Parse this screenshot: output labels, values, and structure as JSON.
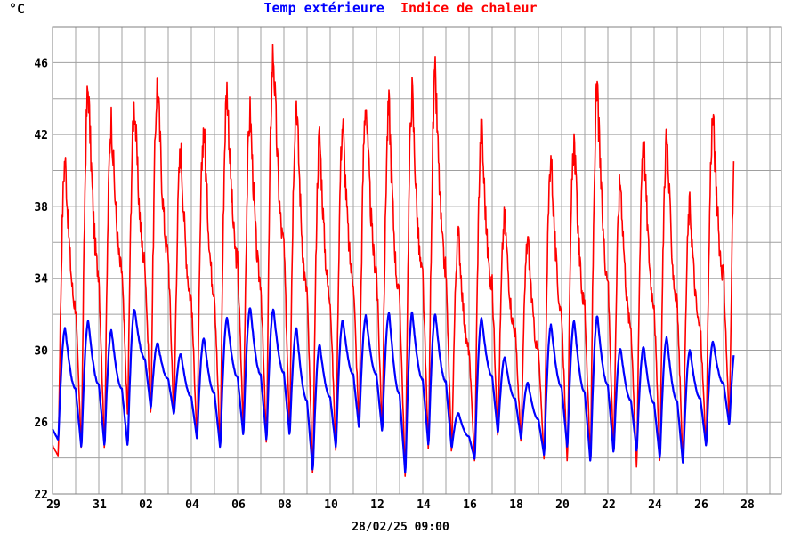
{
  "chart_data": {
    "type": "line",
    "unit": "°C",
    "title_series_1": "Temp extérieure",
    "title_series_2": "Indice de chaleur",
    "footer": "28/02/25 09:00",
    "grid": true,
    "ylim": [
      22,
      48
    ],
    "yticks": [
      "22",
      "26",
      "30",
      "34",
      "38",
      "42",
      "46"
    ],
    "xticks": [
      "29",
      "31",
      "02",
      "04",
      "06",
      "08",
      "10",
      "12",
      "14",
      "16",
      "18",
      "20",
      "22",
      "24",
      "26",
      "28"
    ],
    "colors": {
      "series_1": "#0000ff",
      "series_2": "#ff0000",
      "grid": "#a0a0a0"
    },
    "series": [
      {
        "name": "Temp extérieure",
        "peaks": [
          31.2,
          31.6,
          31.1,
          32.3,
          30.4,
          29.8,
          30.7,
          31.8,
          32.4,
          32.3,
          31.2,
          30.3,
          31.7,
          31.9,
          32.1,
          32.1,
          32.0,
          26.5,
          31.8,
          29.6,
          28.2,
          31.4,
          31.6,
          31.9,
          30.1,
          30.2,
          30.7,
          30.0,
          30.5
        ],
        "troughs": [
          25.0,
          24.5,
          24.6,
          24.6,
          26.7,
          26.4,
          25.0,
          24.5,
          25.2,
          24.9,
          25.2,
          23.2,
          24.5,
          25.6,
          25.4,
          23.0,
          24.6,
          24.5,
          23.9,
          25.3,
          25.0,
          24.1,
          24.5,
          23.7,
          24.2,
          24.3,
          23.9,
          23.6,
          24.6,
          25.8
        ]
      },
      {
        "name": "Indice de chaleur",
        "peaks": [
          40.6,
          44.6,
          42.8,
          43.7,
          44.9,
          41.1,
          42.4,
          44.5,
          43.2,
          46.6,
          44.0,
          41.9,
          42.6,
          43.8,
          43.5,
          44.3,
          45.1,
          36.5,
          42.3,
          37.4,
          36.2,
          40.8,
          41.6,
          44.4,
          39.5,
          41.9,
          41.9,
          38.1,
          43.0
        ],
        "troughs": [
          24.1,
          24.3,
          24.2,
          26.1,
          26.1,
          26.0,
          24.8,
          24.3,
          25.5,
          24.5,
          25.4,
          22.8,
          24.1,
          25.5,
          25.3,
          22.6,
          24.1,
          24.0,
          23.6,
          25.0,
          24.7,
          23.7,
          23.5,
          23.6,
          24.0,
          23.2,
          23.5,
          23.4,
          24.4,
          25.6
        ]
      }
    ]
  }
}
